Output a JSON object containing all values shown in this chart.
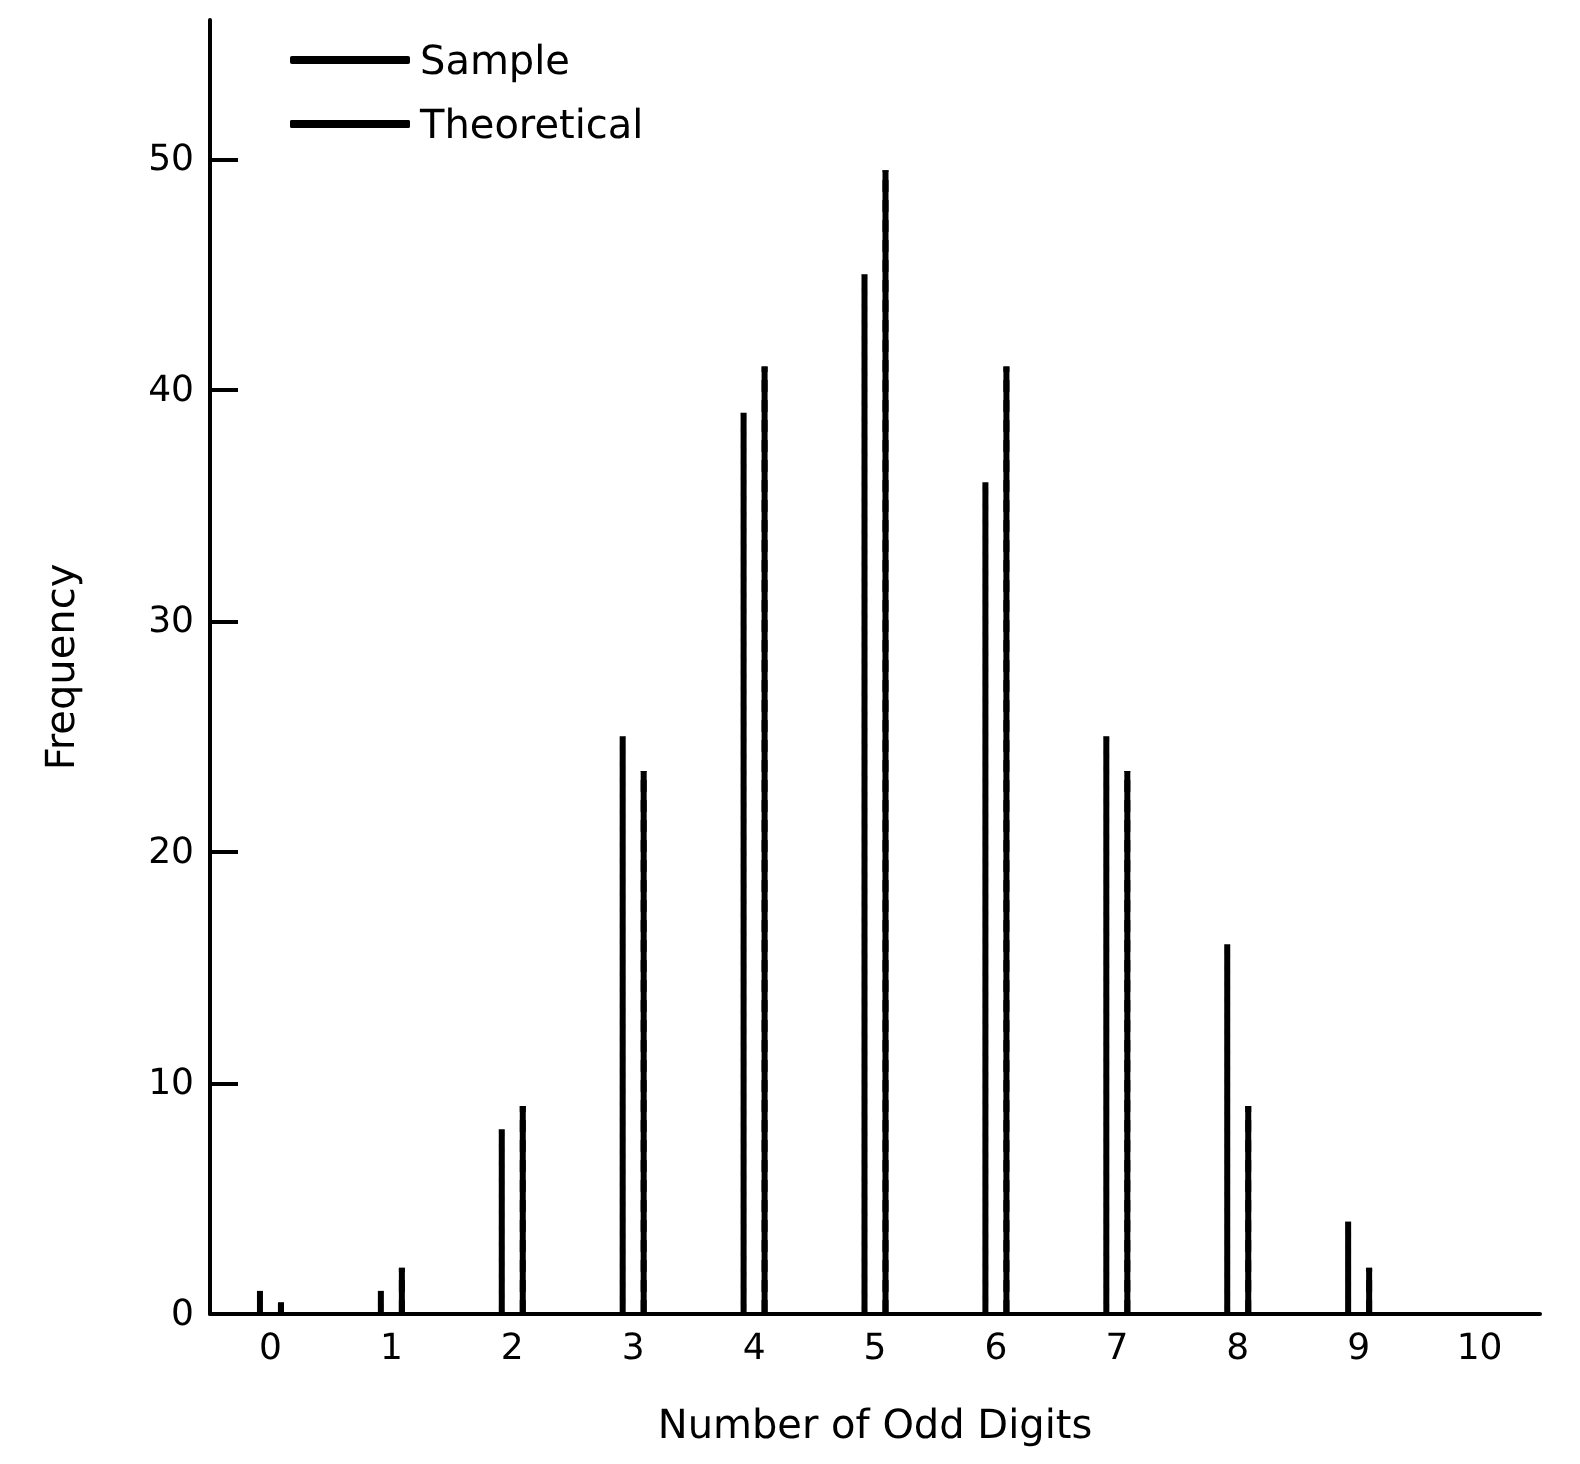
{
  "chart_data": {
    "type": "bar",
    "xlabel": "Number of Odd Digits",
    "ylabel": "Frequency",
    "categories": [
      "0",
      "1",
      "2",
      "3",
      "4",
      "5",
      "6",
      "7",
      "8",
      "9",
      "10"
    ],
    "series": [
      {
        "name": "Sample",
        "color": "#000000",
        "line_style": "solid",
        "values": [
          1,
          1,
          8,
          25,
          39,
          45,
          36,
          25,
          16,
          4,
          0
        ]
      },
      {
        "name": "Theoretical",
        "color": "#000000",
        "line_style": "dashed",
        "values": [
          0.5,
          2,
          9,
          23.5,
          41,
          49.5,
          41,
          23.5,
          9,
          2,
          0
        ]
      }
    ],
    "ylim": [
      0,
      56
    ],
    "yticks": [
      0,
      10,
      20,
      30,
      40,
      50
    ],
    "grid": false,
    "legend": "top left"
  }
}
